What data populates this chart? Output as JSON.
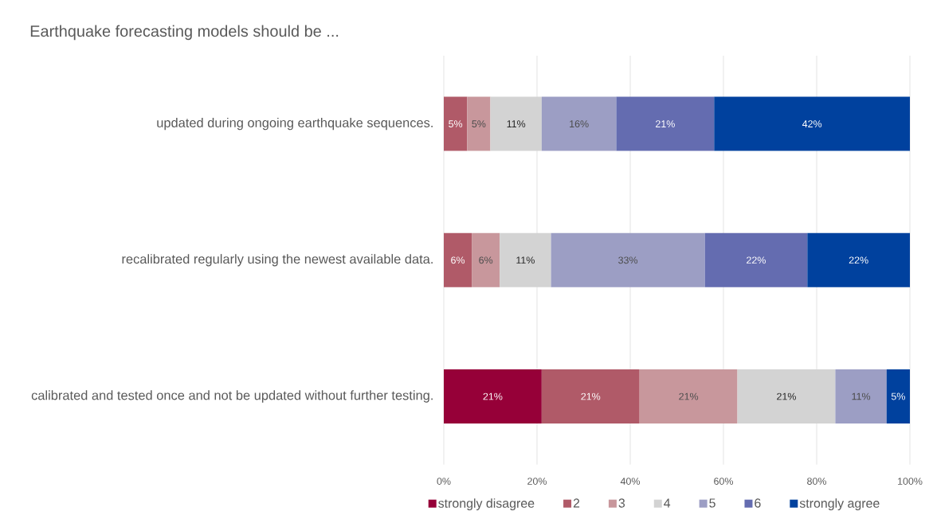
{
  "chart_data": {
    "type": "bar",
    "orientation": "horizontal",
    "stacked": true,
    "title": "Earthquake forecasting models should be ...",
    "categories": [
      "updated during ongoing earthquake sequences.",
      "recalibrated regularly using the newest available data.",
      "calibrated and tested once and not be updated without further testing."
    ],
    "series": [
      {
        "name": "strongly disagree",
        "color": "#960038",
        "values": [
          null,
          null,
          21
        ],
        "value_labels": [
          null,
          null,
          "21%"
        ]
      },
      {
        "name": "2",
        "color": "#b05a68",
        "values": [
          5,
          6,
          21
        ],
        "value_labels": [
          "5%",
          "6%",
          "21%"
        ]
      },
      {
        "name": "3",
        "color": "#c8979c",
        "values": [
          5,
          6,
          21
        ],
        "value_labels": [
          "5%",
          "6%",
          "21%"
        ]
      },
      {
        "name": "4",
        "color": "#d3d3d3",
        "values": [
          11,
          11,
          21
        ],
        "value_labels": [
          "11%",
          "11%",
          "21%"
        ]
      },
      {
        "name": "5",
        "color": "#9c9ec4",
        "values": [
          16,
          33,
          11
        ],
        "value_labels": [
          "16%",
          "33%",
          "11%"
        ]
      },
      {
        "name": "6",
        "color": "#646cb0",
        "values": [
          21,
          22,
          null
        ],
        "value_labels": [
          "21%",
          "22%",
          null
        ]
      },
      {
        "name": "strongly agree",
        "color": "#00419e",
        "values": [
          42,
          22,
          5
        ],
        "value_labels": [
          "42%",
          "22%",
          "5%"
        ]
      }
    ],
    "xlim": [
      0,
      100
    ],
    "xticks": [
      {
        "value": 0,
        "label": "0%"
      },
      {
        "value": 20,
        "label": "20%"
      },
      {
        "value": 40,
        "label": "40%"
      },
      {
        "value": 60,
        "label": "60%"
      },
      {
        "value": 80,
        "label": "80%"
      },
      {
        "value": 100,
        "label": "100%"
      }
    ],
    "grid": "x",
    "legend": "bottom"
  }
}
